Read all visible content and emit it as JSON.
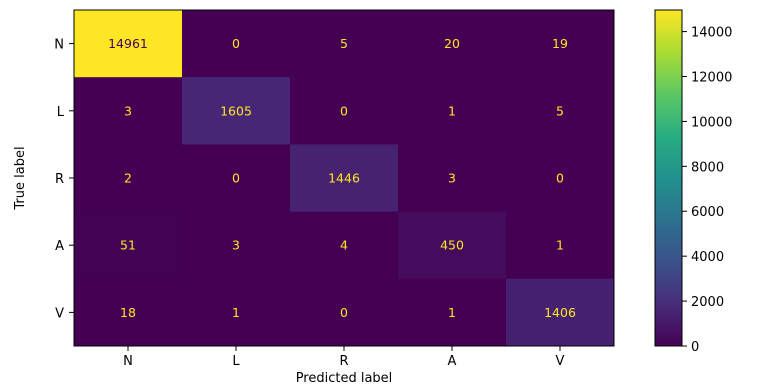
{
  "chart_data": {
    "type": "heatmap",
    "title": "",
    "xlabel": "Predicted label",
    "ylabel": "True label",
    "x_categories": [
      "N",
      "L",
      "R",
      "A",
      "V"
    ],
    "y_categories": [
      "N",
      "L",
      "R",
      "A",
      "V"
    ],
    "values": [
      [
        14961,
        0,
        5,
        20,
        19
      ],
      [
        3,
        1605,
        0,
        1,
        5
      ],
      [
        2,
        0,
        1446,
        3,
        0
      ],
      [
        51,
        3,
        4,
        450,
        1
      ],
      [
        18,
        1,
        0,
        1,
        1406
      ]
    ],
    "colorbar": {
      "min": 0,
      "max": 14961,
      "ticks": [
        0,
        2000,
        4000,
        6000,
        8000,
        10000,
        12000,
        14000
      ],
      "colormap": "viridis"
    },
    "colors": {
      "text_on_dark": "#fde725",
      "text_on_light": "#440154"
    },
    "grid": false,
    "legend": "colorbar-right"
  }
}
